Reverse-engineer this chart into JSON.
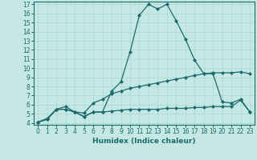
{
  "xlabel": "Humidex (Indice chaleur)",
  "bg_color": "#c5e8e5",
  "line_color": "#1a6b6b",
  "xlim": [
    -0.5,
    23.5
  ],
  "ylim": [
    3.8,
    17.3
  ],
  "xticks": [
    0,
    1,
    2,
    3,
    4,
    5,
    6,
    7,
    8,
    9,
    10,
    11,
    12,
    13,
    14,
    15,
    16,
    17,
    18,
    19,
    20,
    21,
    22,
    23
  ],
  "yticks": [
    4,
    5,
    6,
    7,
    8,
    9,
    10,
    11,
    12,
    13,
    14,
    15,
    16,
    17
  ],
  "line1_x": [
    0,
    1,
    2,
    3,
    4,
    5,
    6,
    7,
    8,
    9,
    10,
    11,
    12,
    13,
    14,
    15,
    16,
    17,
    18,
    19,
    20,
    21,
    22,
    23
  ],
  "line1_y": [
    4.1,
    4.4,
    5.5,
    5.5,
    5.2,
    4.7,
    5.2,
    5.2,
    7.5,
    8.5,
    11.8,
    15.8,
    17.0,
    16.5,
    17.0,
    15.2,
    13.2,
    10.9,
    9.4,
    9.4,
    6.3,
    6.2,
    6.6,
    5.2
  ],
  "line2_x": [
    0,
    1,
    2,
    3,
    4,
    5,
    6,
    7,
    8,
    9,
    10,
    11,
    12,
    13,
    14,
    15,
    16,
    17,
    18,
    19,
    20,
    21,
    22,
    23
  ],
  "line2_y": [
    4.1,
    4.5,
    5.5,
    5.8,
    5.2,
    5.1,
    6.2,
    6.6,
    7.2,
    7.5,
    7.8,
    8.0,
    8.2,
    8.4,
    8.6,
    8.8,
    9.0,
    9.2,
    9.4,
    9.5,
    9.5,
    9.5,
    9.6,
    9.4
  ],
  "line3_x": [
    0,
    1,
    2,
    3,
    4,
    5,
    6,
    7,
    8,
    9,
    10,
    11,
    12,
    13,
    14,
    15,
    16,
    17,
    18,
    19,
    20,
    21,
    22,
    23
  ],
  "line3_y": [
    4.1,
    4.4,
    5.5,
    5.5,
    5.2,
    4.7,
    5.2,
    5.2,
    5.3,
    5.4,
    5.5,
    5.5,
    5.5,
    5.5,
    5.6,
    5.6,
    5.6,
    5.7,
    5.7,
    5.8,
    5.8,
    5.8,
    6.5,
    5.2
  ],
  "grid_color": "#a8d8d4",
  "marker": "D",
  "marker_size": 2.0,
  "linewidth": 0.9,
  "tick_fontsize": 5.5,
  "xlabel_fontsize": 6.5
}
